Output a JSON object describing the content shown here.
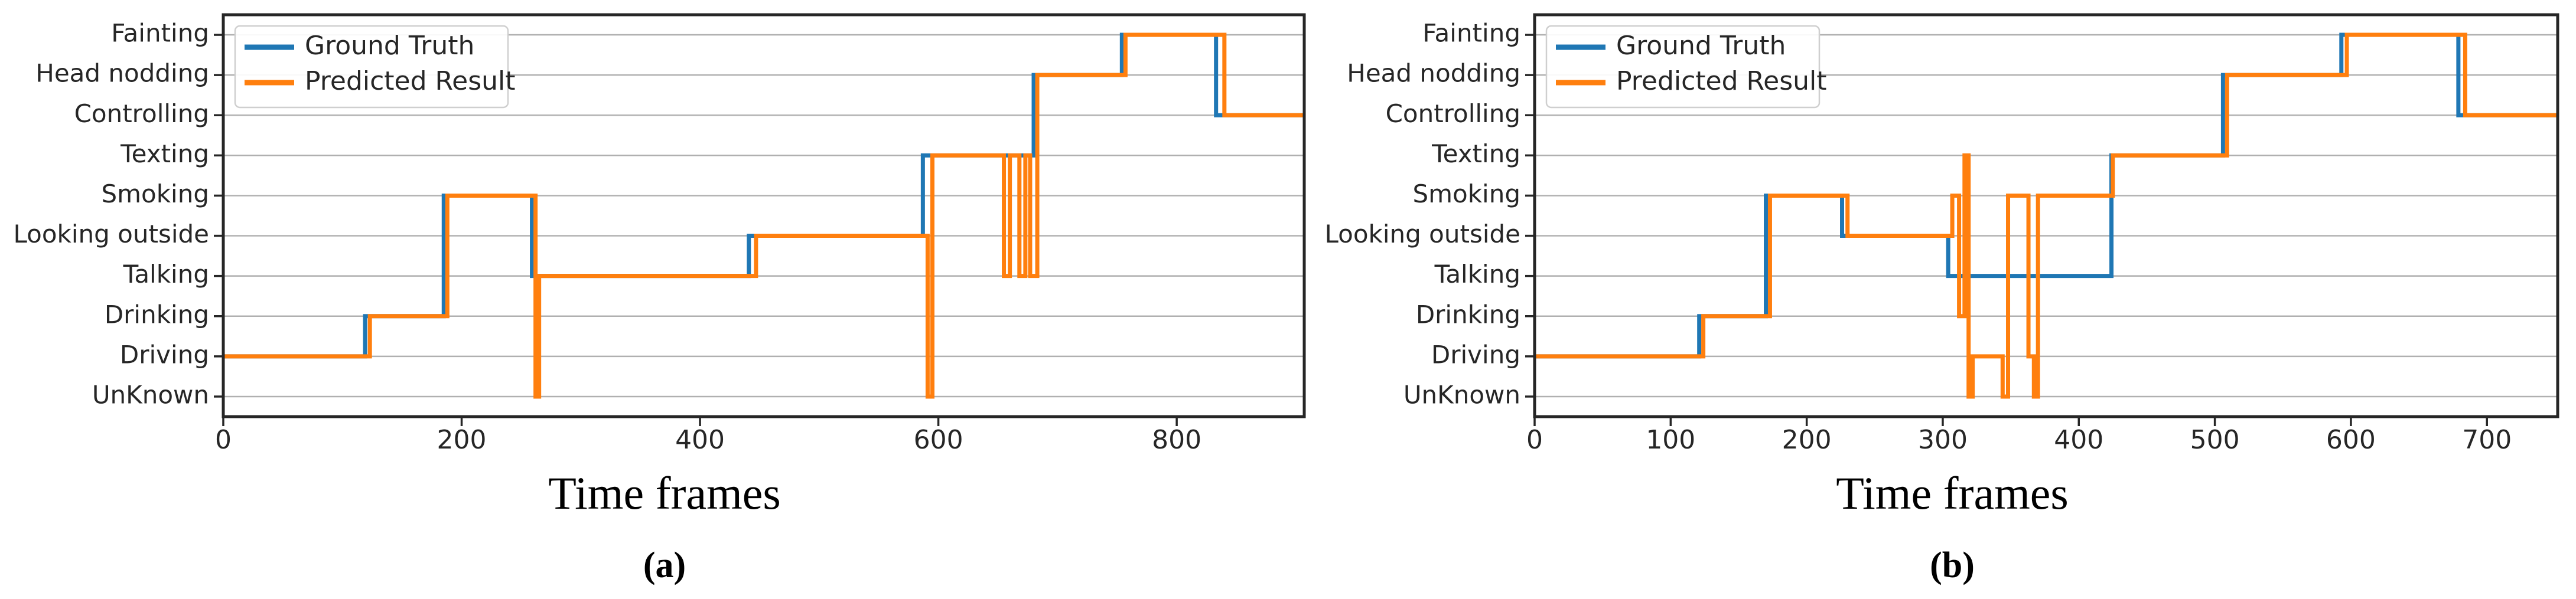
{
  "figure": {
    "background": "#ffffff",
    "text_color": "#262626",
    "grid_color": "#b0b0b0",
    "spine_color": "#262626",
    "legend_border_color": "#cfcfcf",
    "xlabel": "Time frames"
  },
  "chart_data": [
    {
      "type": "line",
      "panel": "a",
      "caption": "(a)",
      "title": "",
      "xlabel": "Time frames",
      "ylabel": "",
      "grid": true,
      "legend_position": "upper left",
      "legend": [
        "Ground Truth",
        "Predicted Result"
      ],
      "y_categories": [
        "UnKnown",
        "Driving",
        "Drinking",
        "Talking",
        "Looking outside",
        "Smoking",
        "Texting",
        "Controlling",
        "Head nodding",
        "Fainting"
      ],
      "xticks": [
        0,
        200,
        400,
        600,
        800
      ],
      "xlim": [
        0,
        907
      ],
      "ylim": [
        -0.5,
        9.5
      ],
      "series": [
        {
          "name": "Ground Truth",
          "color": "#1f77b4",
          "steps": [
            [
              0,
              1
            ],
            [
              119,
              2
            ],
            [
              185,
              5
            ],
            [
              259,
              3
            ],
            [
              441,
              4
            ],
            [
              587,
              6
            ],
            [
              680,
              8
            ],
            [
              754,
              9
            ],
            [
              833,
              7
            ]
          ]
        },
        {
          "name": "Predicted Result",
          "color": "#ff7f0e",
          "steps": [
            [
              0,
              1
            ],
            [
              123,
              2
            ],
            [
              188,
              5
            ],
            [
              262,
              0
            ],
            [
              265,
              3
            ],
            [
              447,
              4
            ],
            [
              591,
              0
            ],
            [
              595,
              6
            ],
            [
              655,
              3
            ],
            [
              660,
              6
            ],
            [
              668,
              3
            ],
            [
              673,
              6
            ],
            [
              677,
              3
            ],
            [
              683,
              8
            ],
            [
              757,
              9
            ],
            [
              840,
              7
            ]
          ]
        }
      ]
    },
    {
      "type": "line",
      "panel": "b",
      "caption": "(b)",
      "title": "",
      "xlabel": "Time frames",
      "ylabel": "",
      "grid": true,
      "legend_position": "upper left",
      "legend": [
        "Ground Truth",
        "Predicted Result"
      ],
      "y_categories": [
        "UnKnown",
        "Driving",
        "Drinking",
        "Talking",
        "Looking outside",
        "Smoking",
        "Texting",
        "Controlling",
        "Head nodding",
        "Fainting"
      ],
      "xticks": [
        0,
        100,
        200,
        300,
        400,
        500,
        600,
        700
      ],
      "xlim": [
        0,
        752
      ],
      "ylim": [
        -0.5,
        9.5
      ],
      "series": [
        {
          "name": "Ground Truth",
          "color": "#1f77b4",
          "steps": [
            [
              0,
              1
            ],
            [
              121,
              2
            ],
            [
              170,
              5
            ],
            [
              226,
              4
            ],
            [
              304,
              3
            ],
            [
              424,
              6
            ],
            [
              506,
              8
            ],
            [
              593,
              9
            ],
            [
              679,
              7
            ]
          ]
        },
        {
          "name": "Predicted Result",
          "color": "#ff7f0e",
          "steps": [
            [
              0,
              1
            ],
            [
              124,
              2
            ],
            [
              173,
              5
            ],
            [
              230,
              4
            ],
            [
              307,
              5
            ],
            [
              312,
              2
            ],
            [
              316,
              6
            ],
            [
              319,
              0
            ],
            [
              322,
              1
            ],
            [
              344,
              0
            ],
            [
              348,
              5
            ],
            [
              363,
              1
            ],
            [
              367,
              0
            ],
            [
              370,
              5
            ],
            [
              425,
              6
            ],
            [
              509,
              8
            ],
            [
              597,
              9
            ],
            [
              684,
              7
            ]
          ]
        }
      ]
    }
  ]
}
